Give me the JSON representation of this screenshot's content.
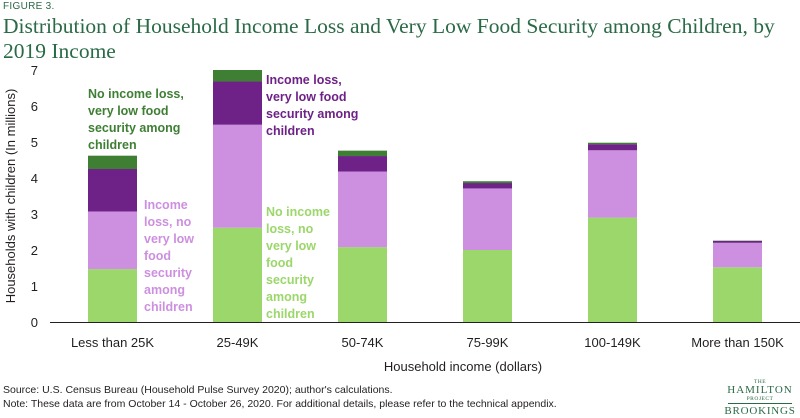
{
  "figure_label": "FIGURE 3.",
  "title": "Distribution of Household Income Loss and Very Low Food Security among Children, by 2019 Income",
  "source": "Source: U.S. Census Bureau (Household Pulse Survey 2020); author's calculations.",
  "note": "Note: These data are from October 14 - October 26, 2020. For additional details, please refer to the technical appendix.",
  "logo": {
    "the": "THE",
    "hamilton": "HAMILTON",
    "project": "PROJECT",
    "brookings": "BROOKINGS"
  },
  "colors": {
    "no_loss_no_vlfs": "#9bd76a",
    "loss_no_vlfs": "#cd8fe0",
    "loss_vlfs": "#6e2287",
    "no_loss_vlfs": "#3f7f34"
  },
  "chart_data": {
    "type": "bar",
    "stacked": true,
    "categories": [
      "Less than 25K",
      "25-49K",
      "50-74K",
      "75-99K",
      "100-149K",
      "More than 150K"
    ],
    "series": [
      {
        "name": "No income loss, no very low food security among children",
        "color": "#9bd76a",
        "values": [
          1.47,
          2.62,
          2.08,
          2.0,
          2.9,
          1.52
        ]
      },
      {
        "name": "Income loss, no very low food security among children",
        "color": "#cd8fe0",
        "values": [
          1.6,
          2.86,
          2.1,
          1.71,
          1.87,
          0.68
        ]
      },
      {
        "name": "Income loss, very low food security among children",
        "color": "#6e2287",
        "values": [
          1.18,
          1.2,
          0.43,
          0.15,
          0.17,
          0.05
        ]
      },
      {
        "name": "No income loss, very low food security among children",
        "color": "#3f7f34",
        "values": [
          0.37,
          0.32,
          0.15,
          0.05,
          0.04,
          0.01
        ]
      }
    ],
    "annotations": [
      {
        "lines": [
          "No income loss,",
          "very low food",
          "security among",
          "children"
        ],
        "color": "#3f7f34"
      },
      {
        "lines": [
          "Income loss,",
          "very low food",
          "security among",
          "children"
        ],
        "color": "#6e2287"
      },
      {
        "lines": [
          "Income",
          "loss, no",
          "very low",
          "food",
          "security",
          "among",
          "children"
        ],
        "color": "#cd8fe0"
      },
      {
        "lines": [
          "No income",
          "loss, no",
          "very low",
          "food",
          "security",
          "among",
          "children"
        ],
        "color": "#9bd76a"
      }
    ],
    "xlabel": "Household income (dollars)",
    "ylabel": "Households with children (In millions)",
    "ylim": [
      0,
      7
    ],
    "yticks": [
      0,
      1,
      2,
      3,
      4,
      5,
      6,
      7
    ],
    "grid": false,
    "legend": "none (direct labels)"
  }
}
